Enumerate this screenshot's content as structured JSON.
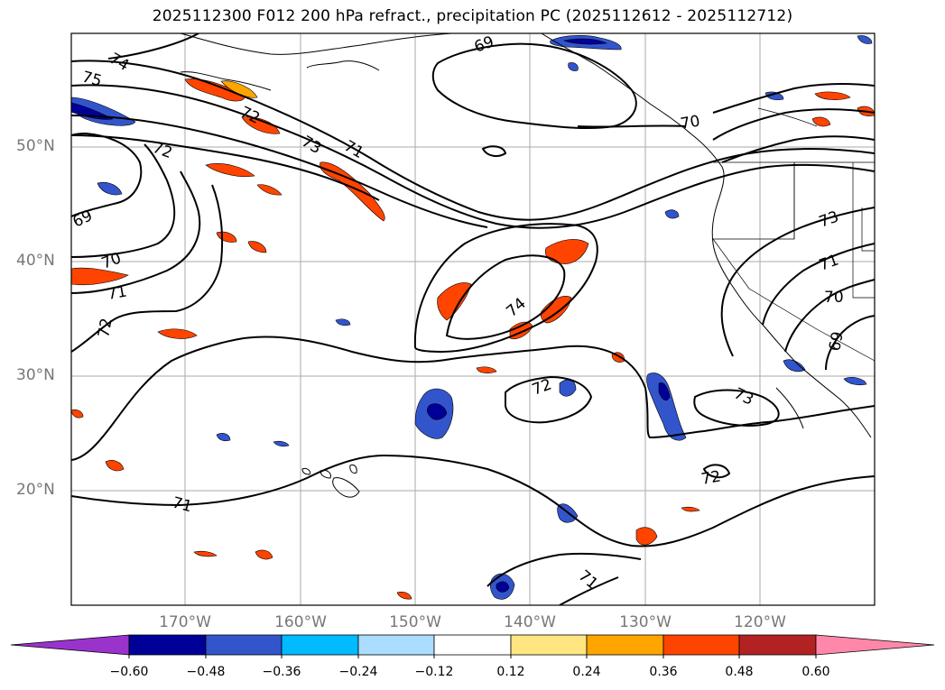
{
  "title": "2025112300 F012 200 hPa refract., precipitation PC (2025112612 - 2025112712)",
  "lat_labels": [
    "50°N",
    "40°N",
    "30°N",
    "20°N"
  ],
  "lon_labels": [
    "170°W",
    "160°W",
    "150°W",
    "140°W",
    "130°W",
    "120°W"
  ],
  "colorbar": {
    "ticks": [
      "−0.60",
      "−0.48",
      "−0.36",
      "−0.24",
      "−0.12",
      "0.12",
      "0.24",
      "0.36",
      "0.48",
      "0.60"
    ],
    "colors": [
      "#9933cc",
      "#000099",
      "#3355cc",
      "#00bbff",
      "#aaddff",
      "#ffffff",
      "#ffe680",
      "#ffa500",
      "#ff4400",
      "#b22222",
      "#ff88aa"
    ]
  },
  "contour_labels": [
    "74",
    "75",
    "72",
    "72",
    "73",
    "71",
    "69",
    "70",
    "71",
    "72",
    "69",
    "70",
    "74",
    "72",
    "73",
    "73",
    "71",
    "70",
    "69",
    "72",
    "71",
    "71"
  ]
}
